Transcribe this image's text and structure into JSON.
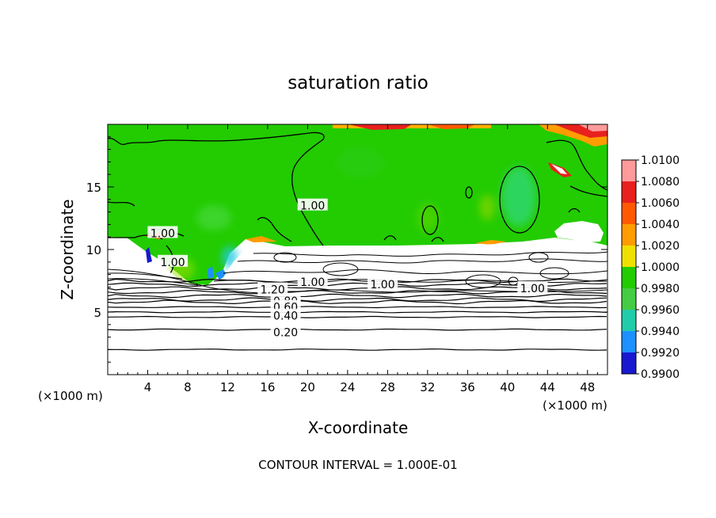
{
  "chart_data": {
    "type": "heatmap",
    "title": "saturation ratio",
    "xlabel": "X-coordinate",
    "ylabel": "Z-coordinate",
    "x_unit": "(×1000 m)",
    "z_unit": "(×1000 m)",
    "xlim": [
      0,
      50
    ],
    "ylim": [
      0,
      20
    ],
    "x_ticks": [
      4,
      8,
      12,
      16,
      20,
      24,
      28,
      32,
      36,
      40,
      44,
      48
    ],
    "y_ticks": [
      5,
      10,
      15
    ],
    "colorbar": {
      "levels": [
        "1.0100",
        "1.0080",
        "1.0060",
        "1.0040",
        "1.0020",
        "1.0000",
        "0.9980",
        "0.9960",
        "0.9940",
        "0.9920",
        "0.9900"
      ],
      "colors": [
        "#ff9a9a",
        "#e8201e",
        "#ff5a00",
        "#ff9c00",
        "#f0e000",
        "#22cc00",
        "#44cc44",
        "#22ccaa",
        "#1e90ff",
        "#1818d0",
        "#4b0082"
      ]
    },
    "contour_labels": [
      {
        "text": "1.00",
        "x": 5.5,
        "z": 11.3
      },
      {
        "text": "1.00",
        "x": 6.5,
        "z": 9.0
      },
      {
        "text": "1.00",
        "x": 20.5,
        "z": 13.5
      },
      {
        "text": "1.00",
        "x": 20.5,
        "z": 7.4
      },
      {
        "text": "1.00",
        "x": 27.5,
        "z": 7.2
      },
      {
        "text": "1.00",
        "x": 42.5,
        "z": 6.9
      },
      {
        "text": "1.20",
        "x": 16.5,
        "z": 6.8
      },
      {
        "text": "0.80",
        "x": 17.8,
        "z": 5.9
      },
      {
        "text": "0.60",
        "x": 17.8,
        "z": 5.4
      },
      {
        "text": "0.40",
        "x": 17.8,
        "z": 4.7
      },
      {
        "text": "0.20",
        "x": 17.8,
        "z": 3.4
      }
    ],
    "horizontal_contours_z": [
      2.0,
      3.6,
      4.6,
      5.0,
      5.4,
      5.8,
      6.0,
      6.3,
      6.6,
      6.9,
      7.2,
      7.5
    ]
  },
  "footer": {
    "contour_interval": "CONTOUR INTERVAL = 1.000E-01"
  }
}
